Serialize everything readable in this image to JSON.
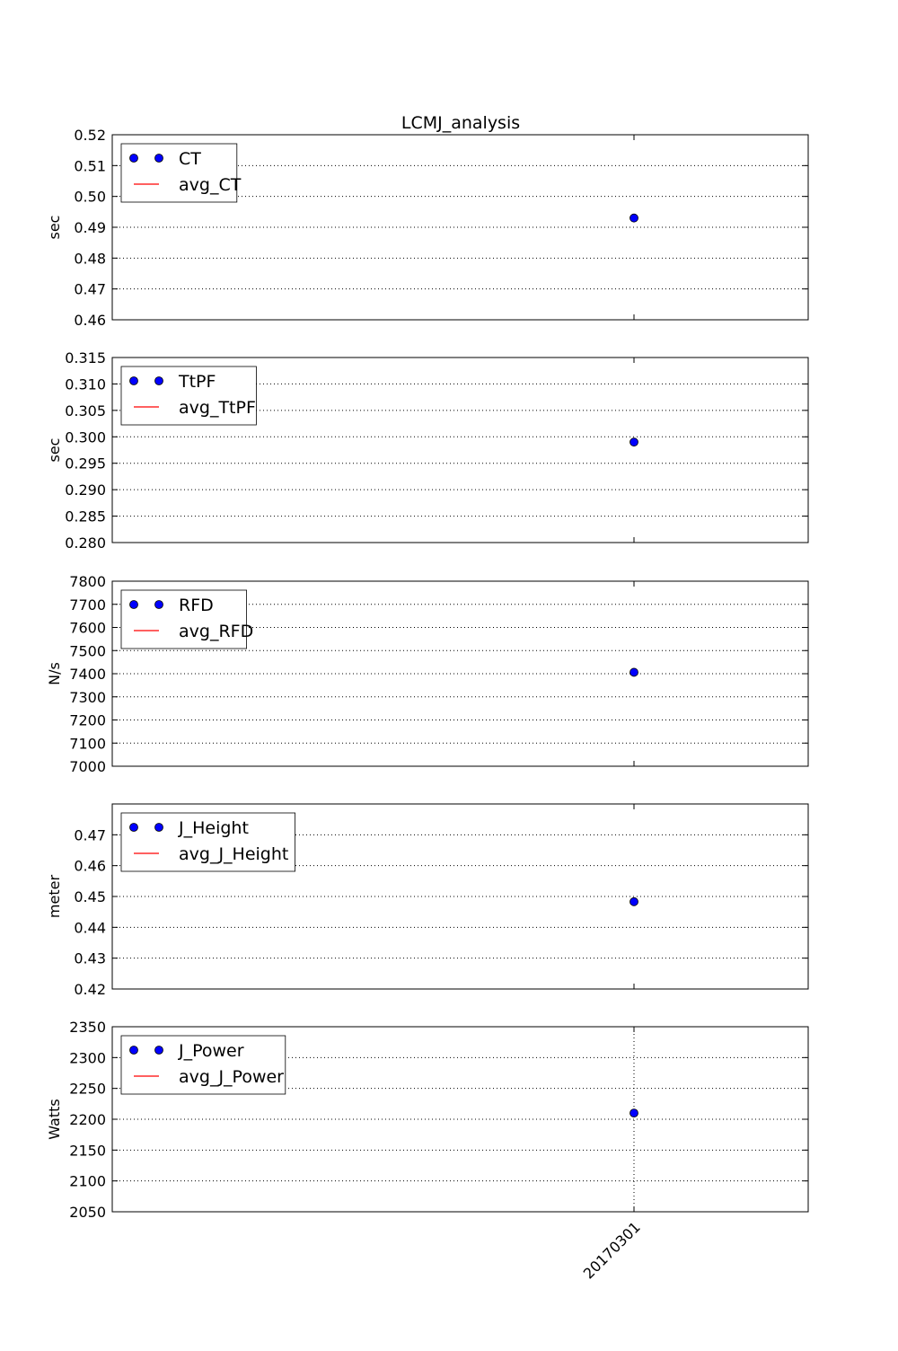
{
  "figure": {
    "title": "LCMJ_analysis",
    "x_category_label": "20170301"
  },
  "chart_data": [
    {
      "type": "scatter",
      "ylabel": "sec",
      "ylim": [
        0.46,
        0.52
      ],
      "yticks": [
        "0.46",
        "0.47",
        "0.48",
        "0.49",
        "0.50",
        "0.51",
        "0.52"
      ],
      "categories": [
        "20170301"
      ],
      "grid": true,
      "legend_position": "upper-left",
      "series": [
        {
          "name": "CT",
          "kind": "points",
          "color": "#0000ff",
          "values": [
            0.493
          ]
        },
        {
          "name": "avg_CT",
          "kind": "line",
          "color": "#ff0000",
          "values": [
            0.493
          ]
        }
      ]
    },
    {
      "type": "scatter",
      "ylabel": "sec",
      "ylim": [
        0.28,
        0.315
      ],
      "yticks": [
        "0.280",
        "0.285",
        "0.290",
        "0.295",
        "0.300",
        "0.305",
        "0.310",
        "0.315"
      ],
      "categories": [
        "20170301"
      ],
      "grid": true,
      "legend_position": "upper-left",
      "series": [
        {
          "name": "TtPF",
          "kind": "points",
          "color": "#0000ff",
          "values": [
            0.299
          ]
        },
        {
          "name": "avg_TtPF",
          "kind": "line",
          "color": "#ff0000",
          "values": [
            0.299
          ]
        }
      ]
    },
    {
      "type": "scatter",
      "ylabel": "N/s",
      "ylim": [
        7000,
        7800
      ],
      "yticks": [
        "7000",
        "7100",
        "7200",
        "7300",
        "7400",
        "7500",
        "7600",
        "7700",
        "7800"
      ],
      "categories": [
        "20170301"
      ],
      "grid": true,
      "legend_position": "upper-left",
      "series": [
        {
          "name": "RFD",
          "kind": "points",
          "color": "#0000ff",
          "values": [
            7406
          ]
        },
        {
          "name": "avg_RFD",
          "kind": "line",
          "color": "#ff0000",
          "values": [
            7406
          ]
        }
      ]
    },
    {
      "type": "scatter",
      "ylabel": "meter",
      "ylim": [
        0.42,
        0.48
      ],
      "yticks": [
        "0.42",
        "0.43",
        "0.44",
        "0.45",
        "0.46",
        "0.47"
      ],
      "categories": [
        "20170301"
      ],
      "grid": true,
      "legend_position": "upper-left",
      "series": [
        {
          "name": "J_Height",
          "kind": "points",
          "color": "#0000ff",
          "values": [
            0.4483
          ]
        },
        {
          "name": "avg_J_Height",
          "kind": "line",
          "color": "#ff0000",
          "values": [
            0.4483
          ]
        }
      ]
    },
    {
      "type": "scatter",
      "ylabel": "Watts",
      "ylim": [
        2050,
        2350
      ],
      "yticks": [
        "2050",
        "2100",
        "2150",
        "2200",
        "2250",
        "2300",
        "2350"
      ],
      "categories": [
        "20170301"
      ],
      "grid": true,
      "xgrid": true,
      "legend_position": "upper-left",
      "series": [
        {
          "name": "J_Power",
          "kind": "points",
          "color": "#0000ff",
          "values": [
            2210
          ]
        },
        {
          "name": "avg_J_Power",
          "kind": "line",
          "color": "#ff0000",
          "values": [
            2210
          ]
        }
      ]
    }
  ]
}
